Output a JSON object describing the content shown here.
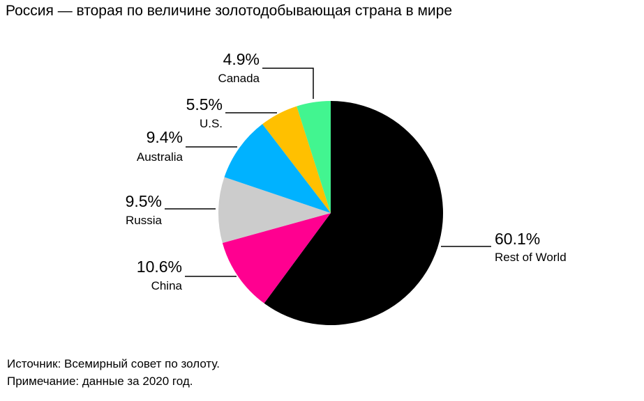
{
  "title": "Россия — вторая по величине золотодобывающая страна в мире",
  "footnotes": {
    "source": "Источник: Всемирный совет по золоту.",
    "note": "Примечание: данные за 2020 год."
  },
  "chart_data": {
    "type": "pie",
    "title": "Россия — вторая по величине золотодобывающая страна в мире",
    "unit": "%",
    "slices": [
      {
        "label": "Rest of World",
        "value": 60.1,
        "value_label": "60.1%",
        "color": "#000000"
      },
      {
        "label": "China",
        "value": 10.6,
        "value_label": "10.6%",
        "color": "#ff0090"
      },
      {
        "label": "Russia",
        "value": 9.5,
        "value_label": "9.5%",
        "color": "#cccccc"
      },
      {
        "label": "Australia",
        "value": 9.4,
        "value_label": "9.4%",
        "color": "#00b2ff"
      },
      {
        "label": "U.S.",
        "value": 5.5,
        "value_label": "5.5%",
        "color": "#ffc000"
      },
      {
        "label": "Canada",
        "value": 4.9,
        "value_label": "4.9%",
        "color": "#42f590"
      }
    ],
    "start_angle": "12 o'clock",
    "direction": "clockwise",
    "legend": "none"
  }
}
